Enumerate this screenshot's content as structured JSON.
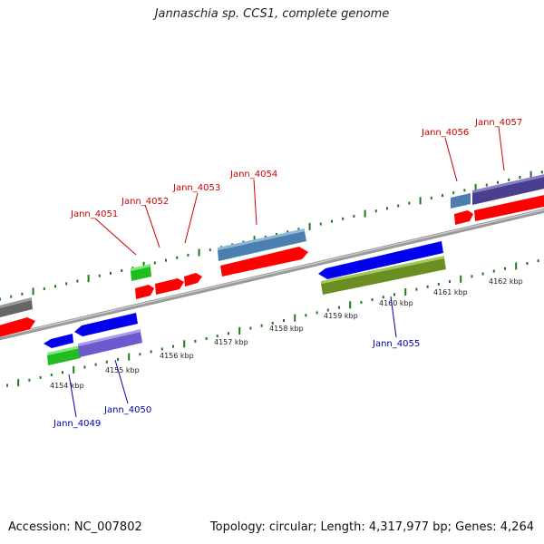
{
  "title": "Jannaschia sp. CCS1, complete genome",
  "footer": {
    "accession": "Accession: NC_007802",
    "summary": "Topology: circular; Length: 4,317,977 bp; Genes: 4,264"
  },
  "colors": {
    "forward_label": "#cc0000",
    "reverse_label": "#0000aa",
    "tick": "#1a7a1a",
    "backbone": "#8a8a8a"
  },
  "ticks": [
    {
      "label": "4154 kbp"
    },
    {
      "label": "4155 kbp"
    },
    {
      "label": "4156 kbp"
    },
    {
      "label": "4157 kbp"
    },
    {
      "label": "4158 kbp"
    },
    {
      "label": "4159 kbp"
    },
    {
      "label": "4160 kbp"
    },
    {
      "label": "4161 kbp"
    },
    {
      "label": "4162 kbp"
    }
  ],
  "gene_labels": {
    "forward": [
      "Jann_4051",
      "Jann_4052",
      "Jann_4053",
      "Jann_4054",
      "Jann_4056",
      "Jann_4057"
    ],
    "reverse": [
      "Jann_4049",
      "Jann_4050",
      "Jann_4055"
    ]
  }
}
